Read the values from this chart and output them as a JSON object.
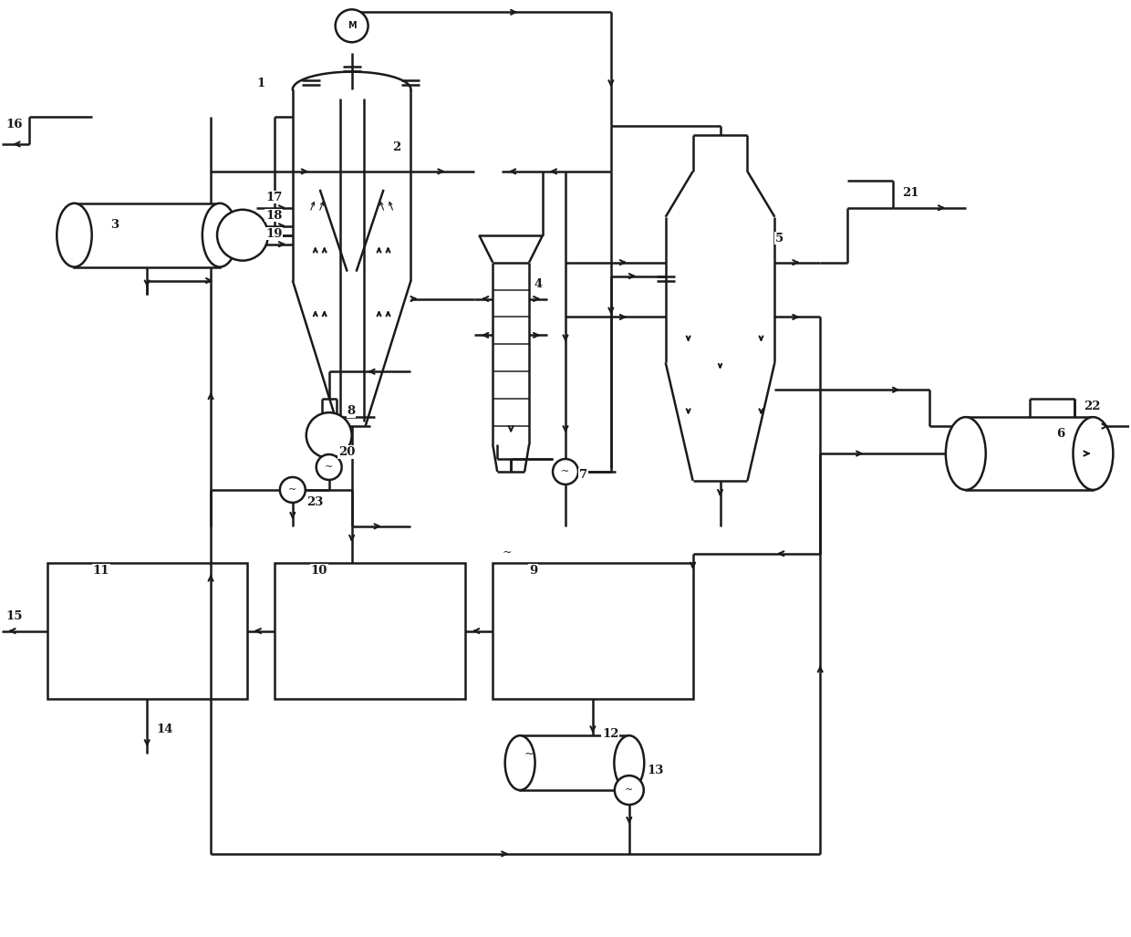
{
  "bg": "#ffffff",
  "lc": "#1a1a1a",
  "lw": 1.8,
  "figsize": [
    12.4,
    10.27
  ],
  "dpi": 100
}
